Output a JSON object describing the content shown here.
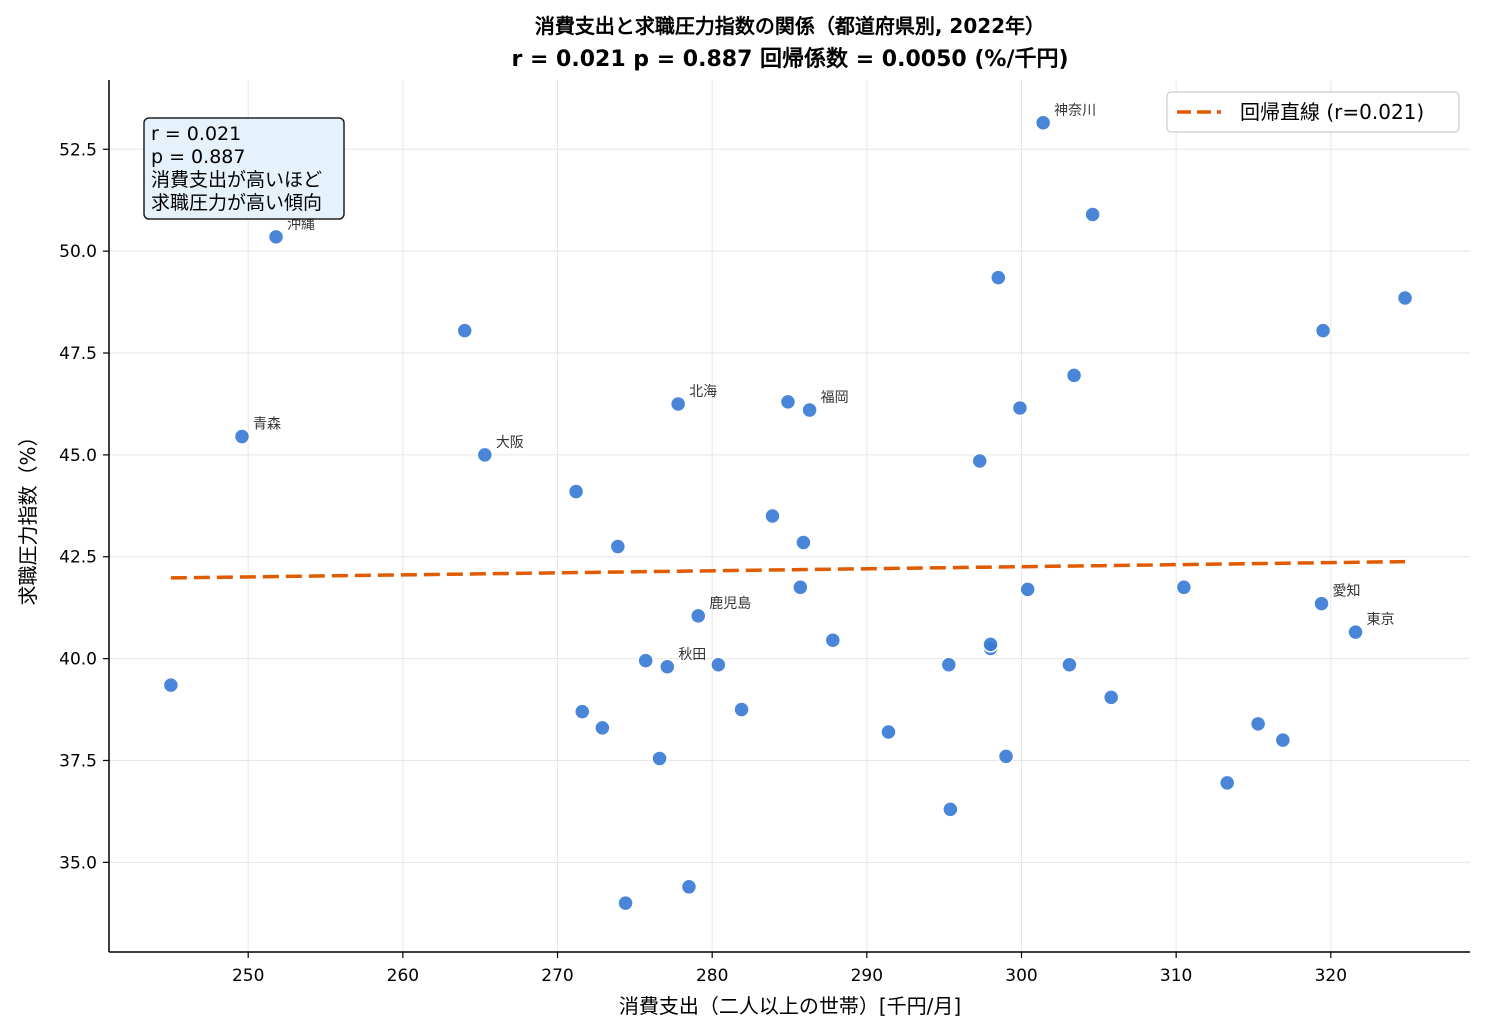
{
  "chart_data": {
    "type": "scatter",
    "title": "消費支出と求職圧力指数の関係（都道府県別, 2022年）",
    "subtitle": "r = 0.021  p = 0.887  回帰係数 = 0.0050 (%/千円)",
    "xlabel": "消費支出（二人以上の世帯）[千円/月]",
    "ylabel": "求職圧力指数（%）",
    "xlim": [
      241,
      329
    ],
    "ylim": [
      32.8,
      54.2
    ],
    "x_ticks": [
      250,
      260,
      270,
      280,
      290,
      300,
      310,
      320
    ],
    "y_ticks": [
      35.0,
      37.5,
      40.0,
      42.5,
      45.0,
      47.5,
      50.0,
      52.5
    ],
    "grid": true,
    "point_color": "#3a7bd5",
    "line_color": "#e05a00",
    "points": [
      {
        "x": 245.0,
        "y": 39.35,
        "label": ""
      },
      {
        "x": 249.6,
        "y": 45.45,
        "label": "青森"
      },
      {
        "x": 251.8,
        "y": 50.35,
        "label": "沖縄"
      },
      {
        "x": 264.0,
        "y": 48.05,
        "label": ""
      },
      {
        "x": 265.3,
        "y": 45.0,
        "label": "大阪"
      },
      {
        "x": 271.2,
        "y": 44.1,
        "label": ""
      },
      {
        "x": 271.6,
        "y": 38.7,
        "label": ""
      },
      {
        "x": 272.9,
        "y": 38.3,
        "label": ""
      },
      {
        "x": 273.9,
        "y": 42.75,
        "label": ""
      },
      {
        "x": 274.4,
        "y": 34.0,
        "label": ""
      },
      {
        "x": 275.7,
        "y": 39.95,
        "label": ""
      },
      {
        "x": 276.6,
        "y": 37.55,
        "label": ""
      },
      {
        "x": 277.1,
        "y": 39.8,
        "label": "秋田"
      },
      {
        "x": 277.8,
        "y": 46.25,
        "label": "北海"
      },
      {
        "x": 278.5,
        "y": 34.4,
        "label": ""
      },
      {
        "x": 279.1,
        "y": 41.05,
        "label": "鹿児島"
      },
      {
        "x": 280.4,
        "y": 39.85,
        "label": ""
      },
      {
        "x": 281.9,
        "y": 38.75,
        "label": ""
      },
      {
        "x": 283.9,
        "y": 43.5,
        "label": ""
      },
      {
        "x": 284.9,
        "y": 46.3,
        "label": ""
      },
      {
        "x": 285.7,
        "y": 41.75,
        "label": ""
      },
      {
        "x": 285.9,
        "y": 42.85,
        "label": ""
      },
      {
        "x": 286.3,
        "y": 46.1,
        "label": "福岡"
      },
      {
        "x": 287.8,
        "y": 40.45,
        "label": ""
      },
      {
        "x": 291.4,
        "y": 38.2,
        "label": ""
      },
      {
        "x": 295.3,
        "y": 39.85,
        "label": ""
      },
      {
        "x": 295.4,
        "y": 36.3,
        "label": ""
      },
      {
        "x": 297.3,
        "y": 44.85,
        "label": ""
      },
      {
        "x": 298.0,
        "y": 40.25,
        "label": ""
      },
      {
        "x": 298.0,
        "y": 40.35,
        "label": ""
      },
      {
        "x": 298.5,
        "y": 49.35,
        "label": ""
      },
      {
        "x": 299.0,
        "y": 37.6,
        "label": ""
      },
      {
        "x": 299.9,
        "y": 46.15,
        "label": ""
      },
      {
        "x": 300.4,
        "y": 41.7,
        "label": ""
      },
      {
        "x": 301.4,
        "y": 53.15,
        "label": "神奈川"
      },
      {
        "x": 303.1,
        "y": 39.85,
        "label": ""
      },
      {
        "x": 303.4,
        "y": 46.95,
        "label": ""
      },
      {
        "x": 304.6,
        "y": 50.9,
        "label": ""
      },
      {
        "x": 305.8,
        "y": 39.05,
        "label": ""
      },
      {
        "x": 310.5,
        "y": 41.75,
        "label": ""
      },
      {
        "x": 313.3,
        "y": 36.95,
        "label": ""
      },
      {
        "x": 315.3,
        "y": 38.4,
        "label": ""
      },
      {
        "x": 316.9,
        "y": 38.0,
        "label": ""
      },
      {
        "x": 319.4,
        "y": 41.35,
        "label": "愛知"
      },
      {
        "x": 319.5,
        "y": 48.05,
        "label": ""
      },
      {
        "x": 321.6,
        "y": 40.65,
        "label": "東京"
      },
      {
        "x": 324.8,
        "y": 48.85,
        "label": ""
      }
    ],
    "regression": {
      "x": [
        245.0,
        324.8
      ],
      "y": [
        41.98,
        42.38
      ]
    },
    "legend": {
      "label": "回帰直線 (r=0.021)",
      "placement": "top-right"
    },
    "stats_box": {
      "lines": [
        "r = 0.021",
        "p = 0.887",
        "消費支出が高いほど",
        "求職圧力が高い傾向"
      ],
      "placement": "top-left"
    }
  }
}
